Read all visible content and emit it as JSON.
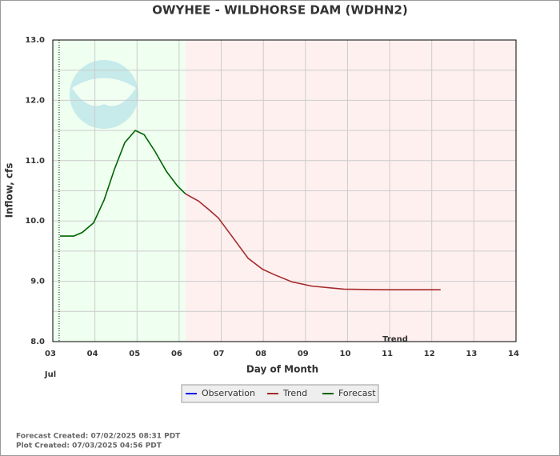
{
  "chart_data": {
    "type": "line",
    "title": "OWYHEE - WILDHORSE DAM  (WDHN2)",
    "y_label": "Inflow, cfs",
    "x_label": "Day of Month",
    "month_label": "Jul",
    "annotation": "Trend",
    "xlim": [
      3,
      14
    ],
    "xticks": [
      {
        "value": 3,
        "label": "03"
      },
      {
        "value": 4,
        "label": "04"
      },
      {
        "value": 5,
        "label": "05"
      },
      {
        "value": 6,
        "label": "06"
      },
      {
        "value": 7,
        "label": "07"
      },
      {
        "value": 8,
        "label": "08"
      },
      {
        "value": 9,
        "label": "09"
      },
      {
        "value": 10,
        "label": "10"
      },
      {
        "value": 11,
        "label": "11"
      },
      {
        "value": 12,
        "label": "12"
      },
      {
        "value": 13,
        "label": "13"
      },
      {
        "value": 14,
        "label": "14"
      }
    ],
    "ylim": [
      8,
      13
    ],
    "yticks": [
      {
        "value": 8,
        "label": "8.0"
      },
      {
        "value": 9,
        "label": "9.0"
      },
      {
        "value": 10,
        "label": "10.0"
      },
      {
        "value": 11,
        "label": "11.0"
      },
      {
        "value": 12,
        "label": "12.0"
      },
      {
        "value": 13,
        "label": "13.0"
      }
    ],
    "grid": true,
    "series": [
      {
        "name": "Observation",
        "color": "#0000ee",
        "x": [],
        "values": []
      },
      {
        "name": "Trend",
        "color": "#a52a2a",
        "x": [
          6.15,
          6.46,
          6.72,
          6.93,
          7.25,
          7.64,
          7.98,
          8.26,
          8.68,
          9.15,
          9.91,
          10.86,
          12.21
        ],
        "values": [
          10.45,
          10.33,
          10.18,
          10.05,
          9.75,
          9.38,
          9.2,
          9.11,
          8.99,
          8.92,
          8.87,
          8.86,
          8.86
        ]
      },
      {
        "name": "Forecast",
        "color": "#006400",
        "x": [
          3.17,
          3.5,
          3.7,
          3.97,
          4.22,
          4.46,
          4.71,
          4.96,
          5.17,
          5.43,
          5.7,
          5.96,
          6.15
        ],
        "values": [
          9.75,
          9.75,
          9.81,
          9.97,
          10.35,
          10.85,
          11.3,
          11.5,
          11.43,
          11.15,
          10.82,
          10.58,
          10.45
        ]
      }
    ],
    "footer": [
      "Forecast Created: 07/02/2025 08:31 PDT",
      "Plot Created: 07/03/2025 04:56 PDT"
    ]
  }
}
